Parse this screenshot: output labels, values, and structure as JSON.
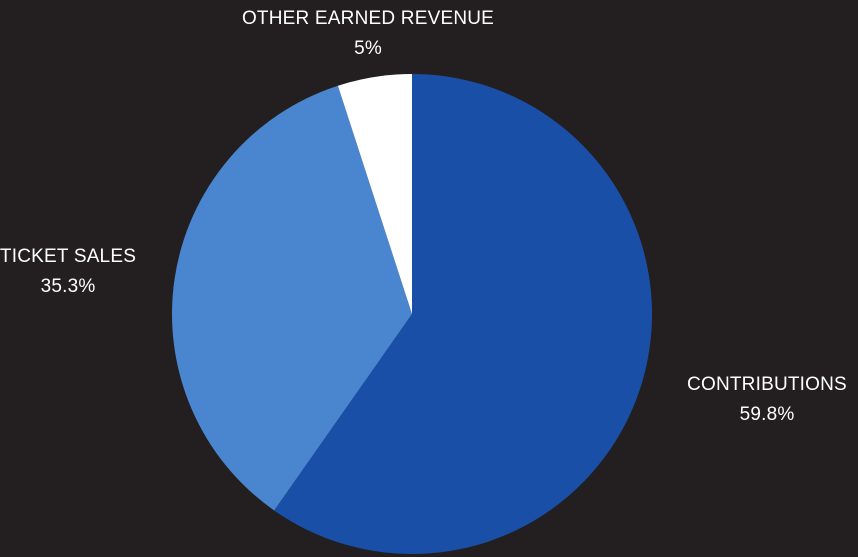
{
  "chart_data": {
    "type": "pie",
    "title": "",
    "slices": [
      {
        "label": "CONTRIBUTIONS",
        "value": 59.8,
        "value_label": "59.8%",
        "color": "#1a4fa8"
      },
      {
        "label": "TICKET SALES",
        "value": 35.3,
        "value_label": "35.3%",
        "color": "#4a86cf"
      },
      {
        "label": "OTHER EARNED REVENUE",
        "value": 5,
        "value_label": "5%",
        "color": "#ffffff"
      }
    ],
    "start_angle_deg": 0,
    "direction": "clockwise",
    "legend": "none",
    "background": "#231f20"
  }
}
